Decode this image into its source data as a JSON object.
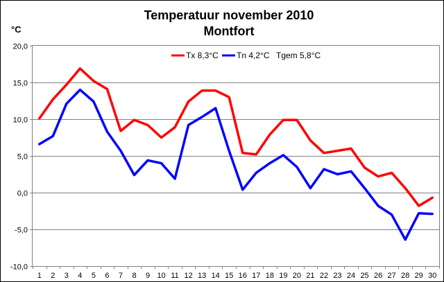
{
  "chart_data": {
    "type": "line",
    "title": [
      "Temperatuur november 2010",
      "Montfort"
    ],
    "ylabel": "°C",
    "xlabel": "",
    "ylim": [
      -10,
      20
    ],
    "ytick_labels": [
      "20,0",
      "15,0",
      "10,0",
      "5,0",
      "0,0",
      "-5,0",
      "-10,0"
    ],
    "ytick_values": [
      20,
      15,
      10,
      5,
      0,
      -5,
      -10
    ],
    "x": [
      1,
      2,
      3,
      4,
      5,
      6,
      7,
      8,
      9,
      10,
      11,
      12,
      13,
      14,
      15,
      16,
      17,
      18,
      19,
      20,
      21,
      22,
      23,
      24,
      25,
      26,
      27,
      28,
      29,
      30
    ],
    "x_labels": [
      "1",
      "2",
      "3",
      "4",
      "5",
      "6",
      "7",
      "8",
      "9",
      "10",
      "11",
      "12",
      "13",
      "14",
      "15",
      "16",
      "17",
      "18",
      "19",
      "20",
      "21",
      "22",
      "23",
      "24",
      "25",
      "26",
      "27",
      "28",
      "29",
      "30"
    ],
    "grid": "horizontal",
    "legend_position": "top-right",
    "series": [
      {
        "name": "Tx 8,3°C",
        "color": "#ff0000",
        "values": [
          10.1,
          12.7,
          14.7,
          16.9,
          15.2,
          14.1,
          8.4,
          9.9,
          9.2,
          7.5,
          8.9,
          12.4,
          13.9,
          13.9,
          13.0,
          5.4,
          5.2,
          7.9,
          9.9,
          9.9,
          7.1,
          5.4,
          5.7,
          6.0,
          3.4,
          2.2,
          2.7,
          0.6,
          -1.8,
          -0.7
        ]
      },
      {
        "name": "Tn 4,2°C",
        "color": "#0000ff",
        "values": [
          6.6,
          7.7,
          12.1,
          14.0,
          12.4,
          8.3,
          5.7,
          2.4,
          4.4,
          4.0,
          1.9,
          9.2,
          10.3,
          11.5,
          5.7,
          0.4,
          2.7,
          4.0,
          5.1,
          3.5,
          0.6,
          3.2,
          2.5,
          2.9,
          0.6,
          -1.8,
          -3.0,
          -6.4,
          -2.8,
          -2.9
        ]
      }
    ],
    "legend_extra": "Tgem 5,8°C"
  }
}
